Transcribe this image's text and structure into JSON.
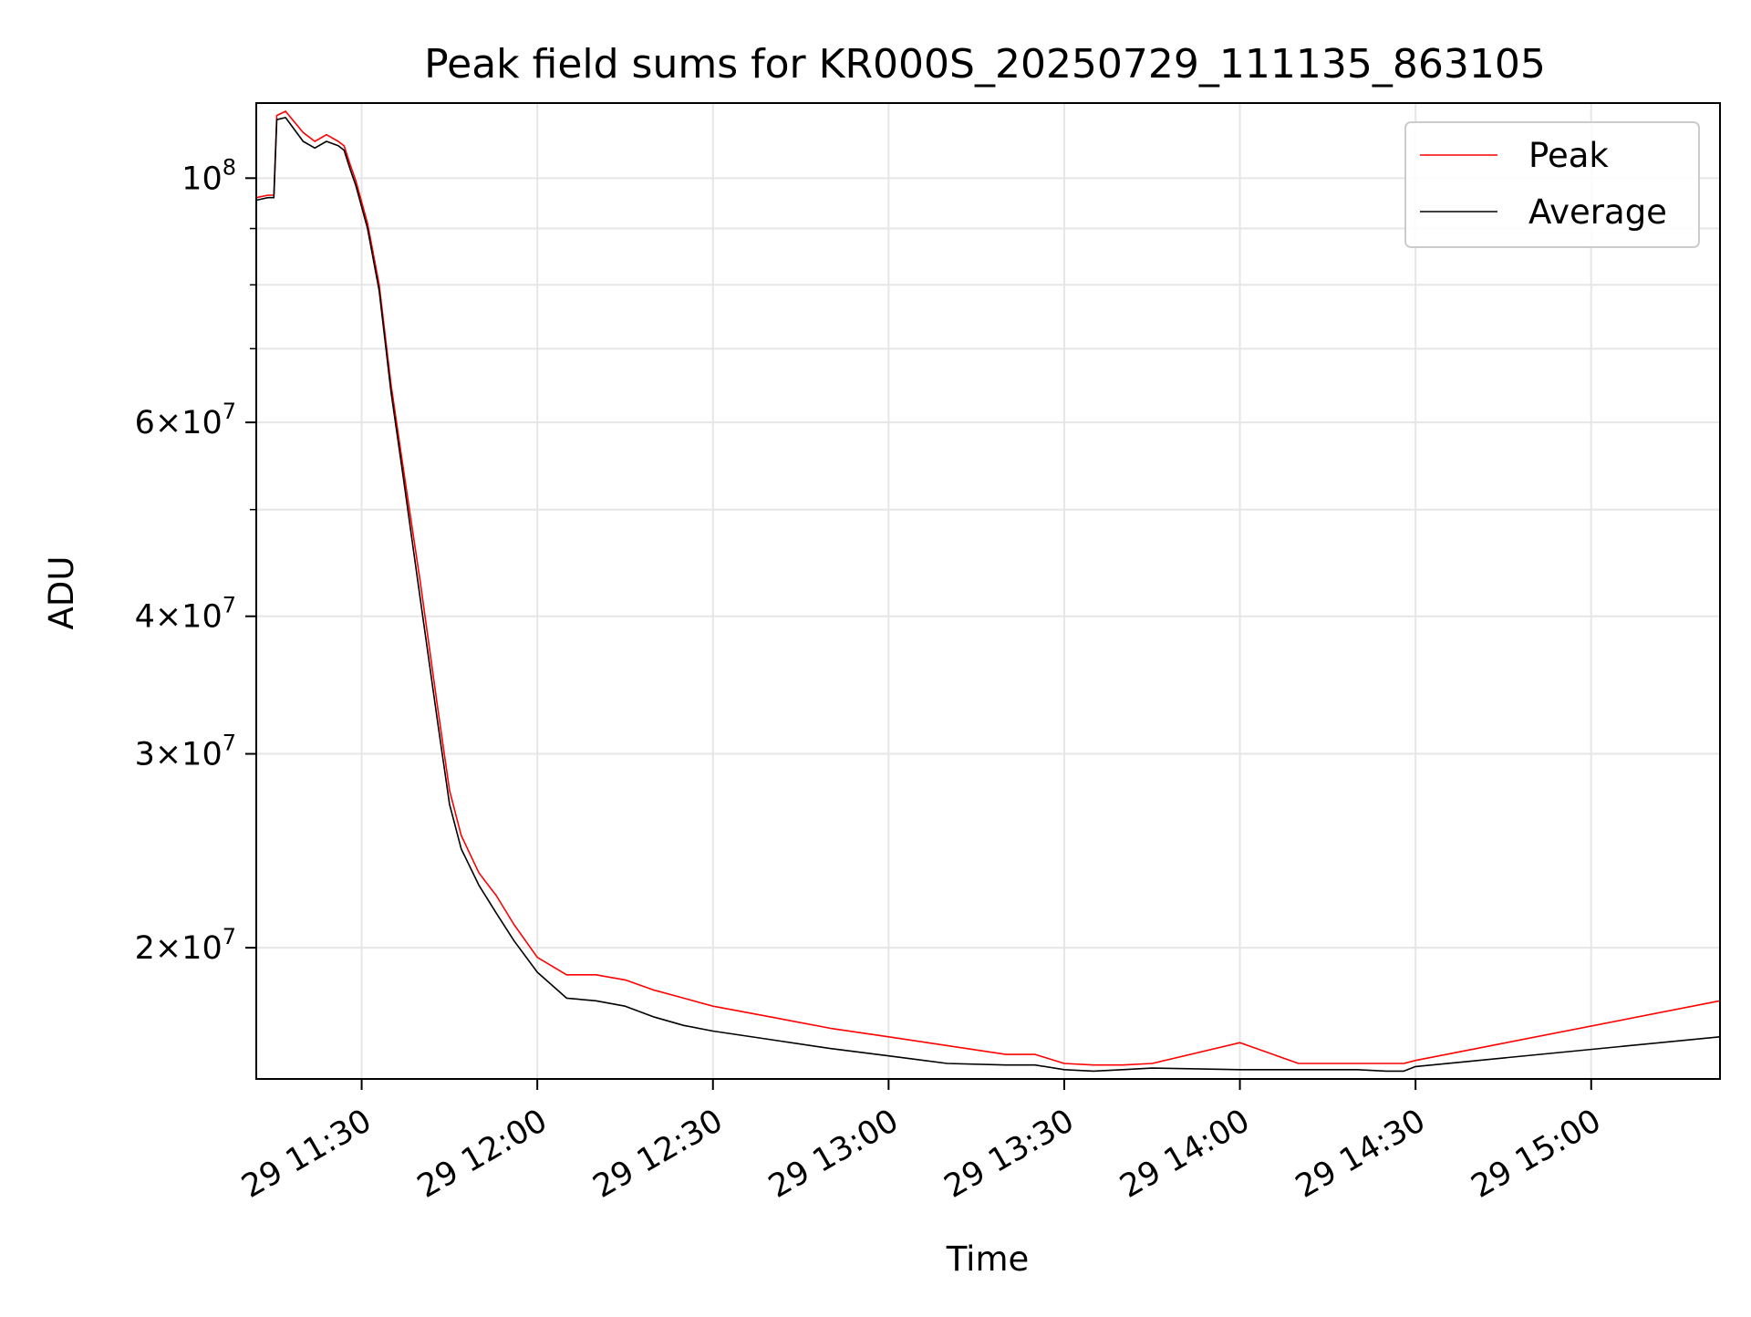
{
  "chart_data": {
    "type": "line",
    "title": "Peak field sums for KR000S_20250729_111135_863105",
    "xlabel": "Time",
    "ylabel": "ADU",
    "y_scale": "log",
    "xlim": [
      "2025-07-29 11:12",
      "2025-07-29 15:22"
    ],
    "ylim": [
      15200000,
      117000000
    ],
    "x_ticks": [
      {
        "t": "2025-07-29 11:30",
        "label": "29 11:30"
      },
      {
        "t": "2025-07-29 12:00",
        "label": "29 12:00"
      },
      {
        "t": "2025-07-29 12:30",
        "label": "29 12:30"
      },
      {
        "t": "2025-07-29 13:00",
        "label": "29 13:00"
      },
      {
        "t": "2025-07-29 13:30",
        "label": "29 13:30"
      },
      {
        "t": "2025-07-29 14:00",
        "label": "29 14:00"
      },
      {
        "t": "2025-07-29 14:30",
        "label": "29 14:30"
      },
      {
        "t": "2025-07-29 15:00",
        "label": "29 15:00"
      }
    ],
    "y_ticks": [
      {
        "value": 20000000,
        "mantissa": "2",
        "exponent": "7"
      },
      {
        "value": 30000000,
        "mantissa": "3",
        "exponent": "7"
      },
      {
        "value": 40000000,
        "mantissa": "4",
        "exponent": "7"
      },
      {
        "value": 60000000,
        "mantissa": "6",
        "exponent": "7"
      },
      {
        "value": 100000000,
        "mantissa": "10",
        "exponent": "8"
      }
    ],
    "y_minor_ticks": [
      50000000,
      70000000,
      80000000,
      90000000
    ],
    "grid": true,
    "legend_position": "top-right",
    "series": [
      {
        "name": "Peak",
        "color": "#ff0000",
        "x": [
          "2025-07-29 11:12",
          "2025-07-29 11:14",
          "2025-07-29 11:15",
          "2025-07-29 11:15:30",
          "2025-07-29 11:17",
          "2025-07-29 11:20",
          "2025-07-29 11:22",
          "2025-07-29 11:24",
          "2025-07-29 11:26",
          "2025-07-29 11:27",
          "2025-07-29 11:28",
          "2025-07-29 11:29",
          "2025-07-29 11:31",
          "2025-07-29 11:33",
          "2025-07-29 11:35",
          "2025-07-29 11:37",
          "2025-07-29 11:40",
          "2025-07-29 11:43",
          "2025-07-29 11:45",
          "2025-07-29 11:47",
          "2025-07-29 11:50",
          "2025-07-29 11:53",
          "2025-07-29 11:56",
          "2025-07-29 12:00",
          "2025-07-29 12:05",
          "2025-07-29 12:10",
          "2025-07-29 12:15",
          "2025-07-29 12:20",
          "2025-07-29 12:25",
          "2025-07-29 12:30",
          "2025-07-29 12:40",
          "2025-07-29 12:50",
          "2025-07-29 13:00",
          "2025-07-29 13:10",
          "2025-07-29 13:20",
          "2025-07-29 13:25",
          "2025-07-29 13:30",
          "2025-07-29 13:35",
          "2025-07-29 13:40",
          "2025-07-29 13:45",
          "2025-07-29 14:00",
          "2025-07-29 14:10",
          "2025-07-29 14:15",
          "2025-07-29 14:20",
          "2025-07-29 14:25",
          "2025-07-29 14:28",
          "2025-07-29 14:30",
          "2025-07-29 15:22"
        ],
        "values": [
          96000000,
          96500000,
          96500000,
          114000000,
          115000000,
          110000000,
          108000000,
          109500000,
          108000000,
          107000000,
          103000000,
          99500000,
          91000000,
          80000000,
          65000000,
          55000000,
          43000000,
          33000000,
          27800000,
          25300000,
          23400000,
          22300000,
          21000000,
          19600000,
          18900000,
          18900000,
          18700000,
          18300000,
          18000000,
          17700000,
          17300000,
          16900000,
          16600000,
          16300000,
          16000000,
          16000000,
          15700000,
          15650000,
          15650000,
          15700000,
          16400000,
          15700000,
          15700000,
          15700000,
          15700000,
          15700000,
          15800000,
          17900000
        ]
      },
      {
        "name": "Average",
        "color": "#000000",
        "x": [
          "2025-07-29 11:12",
          "2025-07-29 11:14",
          "2025-07-29 11:15",
          "2025-07-29 11:15:30",
          "2025-07-29 11:17",
          "2025-07-29 11:20",
          "2025-07-29 11:22",
          "2025-07-29 11:24",
          "2025-07-29 11:26",
          "2025-07-29 11:27",
          "2025-07-29 11:28",
          "2025-07-29 11:29",
          "2025-07-29 11:31",
          "2025-07-29 11:33",
          "2025-07-29 11:35",
          "2025-07-29 11:37",
          "2025-07-29 11:40",
          "2025-07-29 11:43",
          "2025-07-29 11:45",
          "2025-07-29 11:47",
          "2025-07-29 11:50",
          "2025-07-29 11:53",
          "2025-07-29 11:56",
          "2025-07-29 12:00",
          "2025-07-29 12:05",
          "2025-07-29 12:10",
          "2025-07-29 12:15",
          "2025-07-29 12:20",
          "2025-07-29 12:25",
          "2025-07-29 12:30",
          "2025-07-29 12:40",
          "2025-07-29 12:50",
          "2025-07-29 13:00",
          "2025-07-29 13:10",
          "2025-07-29 13:20",
          "2025-07-29 13:25",
          "2025-07-29 13:30",
          "2025-07-29 13:35",
          "2025-07-29 13:40",
          "2025-07-29 13:45",
          "2025-07-29 14:00",
          "2025-07-29 14:10",
          "2025-07-29 14:15",
          "2025-07-29 14:20",
          "2025-07-29 14:25",
          "2025-07-29 14:28",
          "2025-07-29 14:30",
          "2025-07-29 15:22"
        ],
        "values": [
          95500000,
          96000000,
          96000000,
          113000000,
          113500000,
          108000000,
          106500000,
          108000000,
          107000000,
          106000000,
          102000000,
          98500000,
          90000000,
          79000000,
          64000000,
          54000000,
          41500000,
          32000000,
          27000000,
          24600000,
          22800000,
          21500000,
          20300000,
          19000000,
          18000000,
          17900000,
          17700000,
          17300000,
          17000000,
          16800000,
          16500000,
          16200000,
          15950000,
          15700000,
          15650000,
          15650000,
          15500000,
          15450000,
          15500000,
          15550000,
          15500000,
          15500000,
          15500000,
          15500000,
          15450000,
          15450000,
          15600000,
          16600000
        ]
      }
    ]
  }
}
